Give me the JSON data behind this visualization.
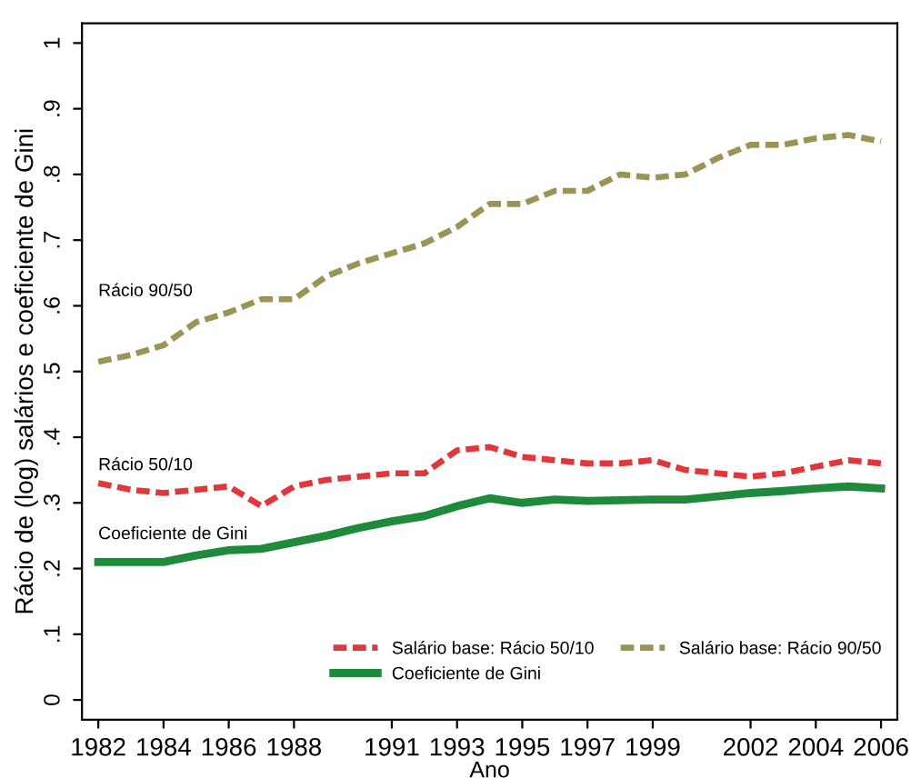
{
  "chart_data": {
    "type": "line",
    "xlabel": "Ano",
    "ylabel": "Rácio de (log) salários e coeficiente de Gini",
    "x": [
      1982,
      1983,
      1984,
      1985,
      1986,
      1987,
      1988,
      1989,
      1990,
      1991,
      1992,
      1993,
      1994,
      1995,
      1996,
      1997,
      1998,
      1999,
      2000,
      2001,
      2002,
      2003,
      2004,
      2005,
      2006
    ],
    "series": [
      {
        "name": "Salário base: Rácio 50/10",
        "color": "#e0373a",
        "line_style": "dashed",
        "values": [
          0.33,
          0.32,
          0.315,
          0.32,
          0.325,
          0.295,
          0.325,
          0.335,
          0.34,
          0.345,
          0.345,
          0.38,
          0.385,
          0.37,
          0.365,
          0.36,
          0.36,
          0.365,
          0.35,
          0.345,
          0.34,
          0.345,
          0.355,
          0.365,
          0.36
        ]
      },
      {
        "name": "Salário base: Rácio 90/50",
        "color": "#9c9455",
        "line_style": "dashed",
        "values": [
          0.515,
          0.525,
          0.54,
          0.575,
          0.59,
          0.61,
          0.61,
          0.645,
          0.665,
          0.68,
          0.695,
          0.72,
          0.755,
          0.755,
          0.775,
          0.775,
          0.8,
          0.795,
          0.8,
          0.825,
          0.845,
          0.845,
          0.855,
          0.86,
          0.85
        ]
      },
      {
        "name": "Coeficiente de Gini",
        "color": "#1f8a3c",
        "line_style": "solid",
        "values": [
          0.21,
          0.21,
          0.21,
          0.22,
          0.228,
          0.23,
          0.24,
          0.25,
          0.262,
          0.272,
          0.28,
          0.295,
          0.307,
          0.3,
          0.305,
          0.303,
          0.304,
          0.305,
          0.305,
          0.31,
          0.315,
          0.318,
          0.322,
          0.325,
          0.322
        ]
      }
    ],
    "annotations": [
      "Rácio 90/50",
      "Rácio 50/10",
      "Coeficiente de Gini"
    ],
    "xlim": [
      1981.5,
      2006.5
    ],
    "xticks": [
      1982,
      1984,
      1986,
      1988,
      1991,
      1993,
      1995,
      1997,
      1999,
      2002,
      2004,
      2006
    ],
    "ylim": [
      -0.03,
      1.03
    ],
    "yticks": [
      {
        "value": 0,
        "label": "0"
      },
      {
        "value": 0.1,
        "label": ".1"
      },
      {
        "value": 0.2,
        "label": ".2"
      },
      {
        "value": 0.3,
        "label": ".3"
      },
      {
        "value": 0.4,
        "label": ".4"
      },
      {
        "value": 0.5,
        "label": ".5"
      },
      {
        "value": 0.6,
        "label": ".6"
      },
      {
        "value": 0.7,
        "label": ".7"
      },
      {
        "value": 0.8,
        "label": ".8"
      },
      {
        "value": 0.9,
        "label": ".9"
      },
      {
        "value": 1,
        "label": "1"
      }
    ],
    "grid": false,
    "legend": "bottom right",
    "marker": "none"
  }
}
